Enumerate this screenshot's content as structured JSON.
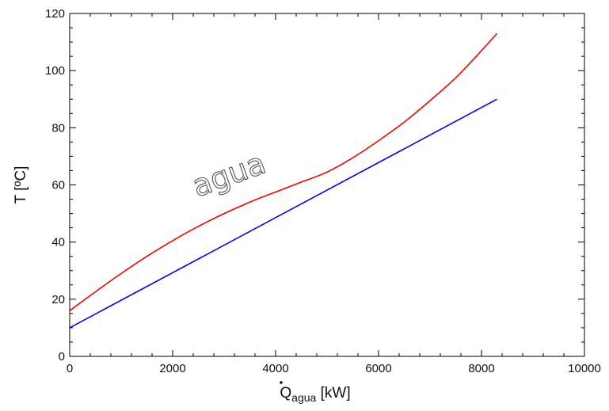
{
  "chart_data": {
    "type": "line",
    "title": "",
    "xlabel": {
      "main": "Q",
      "sub": "agua",
      "unit": " [kW]"
    },
    "ylabel": "T [ºC]",
    "xlim": [
      0,
      10000
    ],
    "ylim": [
      0,
      120
    ],
    "x_ticks": [
      "0",
      "2000",
      "4000",
      "6000",
      "8000",
      "10000"
    ],
    "y_ticks": [
      "0",
      "20",
      "40",
      "60",
      "80",
      "100",
      "120"
    ],
    "grid": false,
    "legend": "none",
    "annotations": [
      {
        "text": "agua",
        "x": 3700,
        "y": 58,
        "rotation_deg": -20
      }
    ],
    "series": [
      {
        "color": "#ff0000",
        "x": [
          0,
          500,
          1000,
          1500,
          2000,
          2500,
          3000,
          3500,
          4000,
          4500,
          5000,
          5500,
          6000,
          6500,
          7000,
          7500,
          8000,
          8300
        ],
        "y": [
          16,
          22.6,
          29,
          35,
          40.5,
          45.5,
          50,
          54,
          57.5,
          61,
          64.5,
          69.5,
          75.5,
          82,
          89.5,
          97.5,
          107,
          113
        ]
      },
      {
        "color": "#0000ff",
        "x": [
          0,
          8300
        ],
        "y": [
          10,
          90
        ]
      }
    ]
  }
}
